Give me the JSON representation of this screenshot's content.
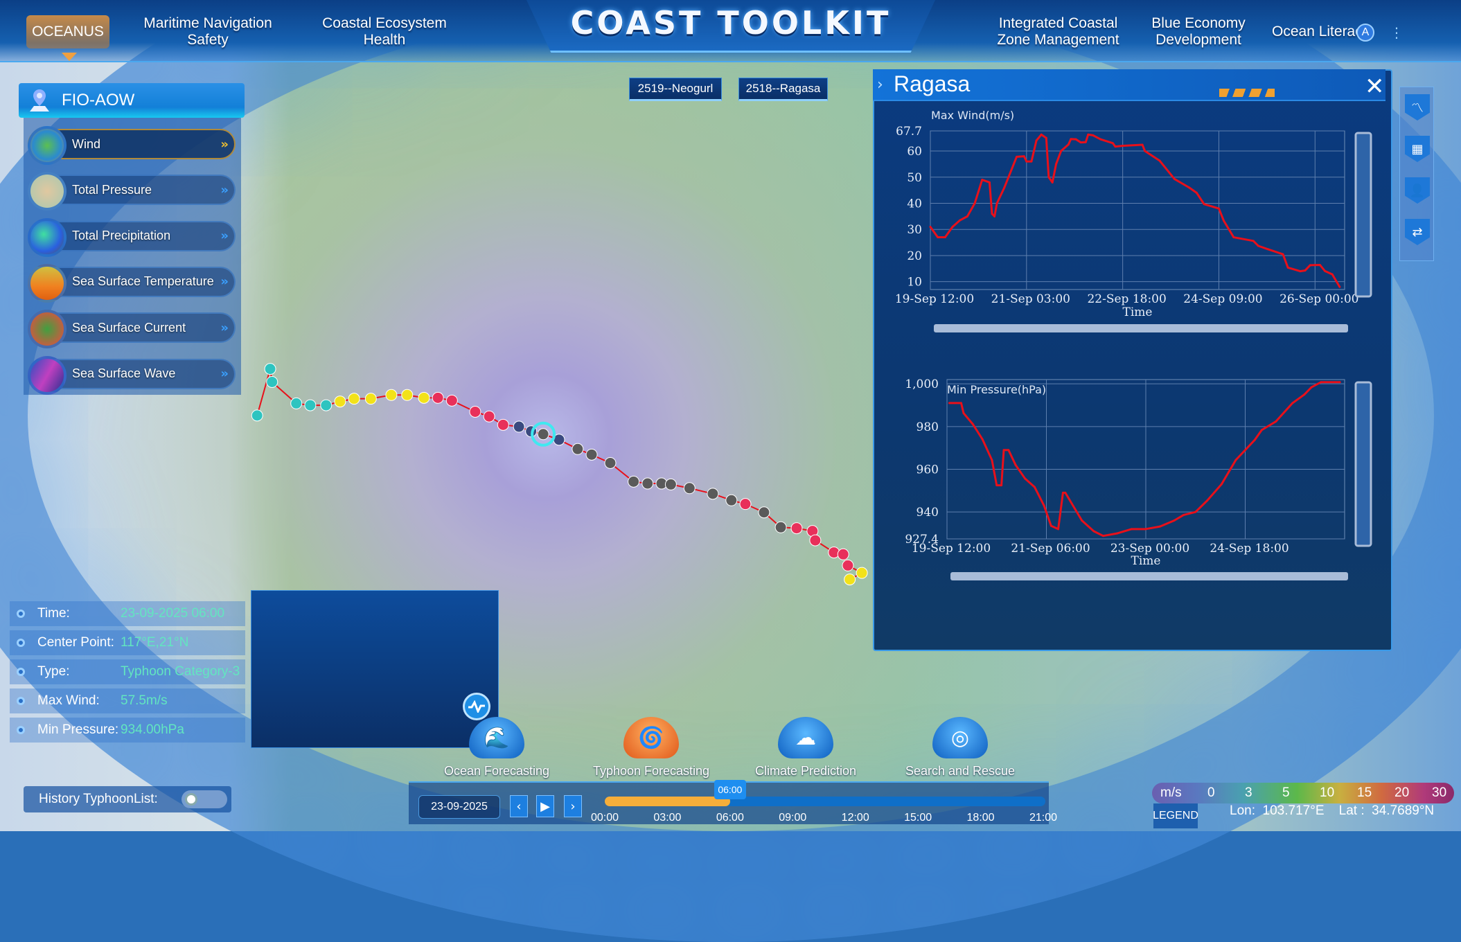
{
  "header": {
    "brand": "OCEANUS",
    "title": "COAST TOOLKIT",
    "nav_left": [
      "Maritime Navigation Safety",
      "Coastal Ecosystem Health"
    ],
    "nav_right": [
      "Integrated Coastal Zone Management",
      "Blue Economy Development",
      "Ocean Literac"
    ],
    "avatar": "A"
  },
  "typhoon_tabs": [
    "2519--Neogurl",
    "2518--Ragasa"
  ],
  "left_panel": {
    "title": "FIO-AOW",
    "layers": [
      {
        "label": "Wind",
        "active": true
      },
      {
        "label": "Total Pressure",
        "active": false
      },
      {
        "label": "Total Precipitation",
        "active": false
      },
      {
        "label": "Sea Surface Temperature",
        "active": false
      },
      {
        "label": "Sea Surface Current",
        "active": false
      },
      {
        "label": "Sea Surface Wave",
        "active": false
      }
    ]
  },
  "info": {
    "rows": [
      {
        "key": "Time:",
        "value": "23-09-2025 06:00"
      },
      {
        "key": "Center Point:",
        "value": "117°E,21°N"
      },
      {
        "key": "Type:",
        "value": "Typhoon Category-3"
      },
      {
        "key": "Max Wind:",
        "value": "57.5m/s"
      },
      {
        "key": "Min Pressure:",
        "value": "934.00hPa"
      }
    ]
  },
  "panel": {
    "title": "Ragasa"
  },
  "chart_data": [
    {
      "type": "line",
      "title": "Max Wind(m/s)",
      "xlabel": "Time",
      "ylabel": "",
      "color": "#e8101a",
      "xlim": [
        "19-Sep 12:00",
        "26-Sep 12:00"
      ],
      "ylim": [
        7,
        67.7
      ],
      "xticks": [
        "19-Sep 12:00",
        "21-Sep 03:00",
        "22-Sep 18:00",
        "24-Sep 09:00",
        "26-Sep 00:00"
      ],
      "yticks": [
        10,
        20,
        30,
        40,
        50,
        60,
        67.7
      ],
      "grid": true,
      "points": [
        [
          "19-Sep 12:00",
          31
        ],
        [
          "19-Sep 15:00",
          27
        ],
        [
          "19-Sep 18:00",
          27
        ],
        [
          "19-Sep 21:00",
          31
        ],
        [
          "20-Sep 00:00",
          33.5
        ],
        [
          "20-Sep 03:00",
          35
        ],
        [
          "20-Sep 06:00",
          40
        ],
        [
          "20-Sep 09:00",
          49
        ],
        [
          "20-Sep 12:00",
          48
        ],
        [
          "20-Sep 13:00",
          36
        ],
        [
          "20-Sep 14:00",
          35
        ],
        [
          "20-Sep 15:00",
          40
        ],
        [
          "20-Sep 18:00",
          46
        ],
        [
          "20-Sep 23:00",
          57.8
        ],
        [
          "21-Sep 02:00",
          58
        ],
        [
          "21-Sep 03:00",
          56
        ],
        [
          "21-Sep 05:00",
          56
        ],
        [
          "21-Sep 07:00",
          64
        ],
        [
          "21-Sep 09:00",
          66.3
        ],
        [
          "21-Sep 11:00",
          65
        ],
        [
          "21-Sep 12:00",
          50
        ],
        [
          "21-Sep 13:30",
          48
        ],
        [
          "21-Sep 15:00",
          55
        ],
        [
          "21-Sep 17:00",
          60
        ],
        [
          "21-Sep 20:00",
          62.5
        ],
        [
          "21-Sep 21:00",
          64.6
        ],
        [
          "21-Sep 23:00",
          64.5
        ],
        [
          "22-Sep 01:00",
          63.3
        ],
        [
          "22-Sep 03:00",
          63.4
        ],
        [
          "22-Sep 04:00",
          66.3
        ],
        [
          "22-Sep 06:00",
          66
        ],
        [
          "22-Sep 09:00",
          64.5
        ],
        [
          "22-Sep 14:00",
          63
        ],
        [
          "22-Sep 15:00",
          61.7
        ],
        [
          "22-Sep 18:00",
          62
        ],
        [
          "23-Sep 02:00",
          62.4
        ],
        [
          "23-Sep 03:00",
          60
        ],
        [
          "23-Sep 09:00",
          56.3
        ],
        [
          "23-Sep 15:00",
          49.3
        ],
        [
          "23-Sep 21:00",
          46
        ],
        [
          "24-Sep 00:00",
          44
        ],
        [
          "24-Sep 03:00",
          39.7
        ],
        [
          "24-Sep 09:00",
          38
        ],
        [
          "24-Sep 11:00",
          33.3
        ],
        [
          "24-Sep 15:00",
          27
        ],
        [
          "24-Sep 23:00",
          25.6
        ],
        [
          "25-Sep 01:00",
          23.7
        ],
        [
          "25-Sep 05:00",
          22.4
        ],
        [
          "25-Sep 11:00",
          20.5
        ],
        [
          "25-Sep 13:00",
          15.4
        ],
        [
          "25-Sep 18:00",
          14
        ],
        [
          "25-Sep 20:00",
          14.3
        ],
        [
          "25-Sep 22:00",
          16.3
        ],
        [
          "26-Sep 02:00",
          16.4
        ],
        [
          "26-Sep 04:00",
          14.1
        ],
        [
          "26-Sep 07:00",
          12.8
        ],
        [
          "26-Sep 10:00",
          8
        ]
      ]
    },
    {
      "type": "line",
      "title": "Min Pressure(hPa)",
      "xlabel": "Time",
      "ylabel": "",
      "color": "#e8101a",
      "xlim": [
        "19-Sep 12:00",
        "26-Sep 12:00"
      ],
      "ylim": [
        927.4,
        1002
      ],
      "xticks": [
        "19-Sep 12:00",
        "21-Sep 06:00",
        "23-Sep 00:00",
        "24-Sep 18:00"
      ],
      "yticks": [
        927.4,
        940,
        960,
        980,
        1000
      ],
      "ytick_labels": [
        "927.4",
        "940",
        "960",
        "980",
        "1,000"
      ],
      "grid": true,
      "points": [
        [
          "19-Sep 13:00",
          991
        ],
        [
          "19-Sep 18:00",
          991
        ],
        [
          "19-Sep 19:00",
          986.3
        ],
        [
          "19-Sep 23:00",
          981
        ],
        [
          "20-Sep 03:00",
          974
        ],
        [
          "20-Sep 07:00",
          964.3
        ],
        [
          "20-Sep 09:00",
          952.5
        ],
        [
          "20-Sep 11:00",
          952.5
        ],
        [
          "20-Sep 12:00",
          969
        ],
        [
          "20-Sep 14:00",
          969
        ],
        [
          "20-Sep 17:00",
          962
        ],
        [
          "20-Sep 21:00",
          955.6
        ],
        [
          "21-Sep 01:00",
          951.7
        ],
        [
          "21-Sep 05:00",
          943
        ],
        [
          "21-Sep 08:00",
          933.5
        ],
        [
          "21-Sep 11:00",
          932
        ],
        [
          "21-Sep 13:00",
          949
        ],
        [
          "21-Sep 14:00",
          949
        ],
        [
          "21-Sep 21:00",
          936
        ],
        [
          "22-Sep 02:00",
          931
        ],
        [
          "22-Sep 06:00",
          928.8
        ],
        [
          "22-Sep 12:00",
          930
        ],
        [
          "22-Sep 18:00",
          932
        ],
        [
          "23-Sep 00:00",
          932
        ],
        [
          "23-Sep 06:00",
          933.2
        ],
        [
          "23-Sep 12:00",
          936
        ],
        [
          "23-Sep 16:00",
          938.6
        ],
        [
          "23-Sep 21:00",
          940
        ],
        [
          "24-Sep 02:00",
          945.4
        ],
        [
          "24-Sep 08:00",
          953
        ],
        [
          "24-Sep 14:00",
          964.3
        ],
        [
          "24-Sep 18:00",
          969
        ],
        [
          "24-Sep 22:00",
          973.7
        ],
        [
          "25-Sep 01:00",
          978.4
        ],
        [
          "25-Sep 07:00",
          982.4
        ],
        [
          "25-Sep 14:00",
          991
        ],
        [
          "25-Sep 19:00",
          995
        ],
        [
          "25-Sep 22:00",
          998.4
        ],
        [
          "26-Sep 02:00",
          1000.8
        ],
        [
          "26-Sep 10:00",
          1000.8
        ]
      ]
    }
  ],
  "right_toolbar": [
    "chart-line-icon",
    "grid-icon",
    "worker-icon",
    "swap-icon"
  ],
  "features": [
    "Ocean Forecasting",
    "Typhoon Forecasting",
    "Climate Prediction",
    "Search and Rescue"
  ],
  "timeline": {
    "date": "23-09-2025",
    "current": "06:00",
    "progress_hours": 6,
    "range_hours": 21,
    "ticks": [
      "00:00",
      "03:00",
      "06:00",
      "09:00",
      "12:00",
      "15:00",
      "18:00",
      "21:00"
    ]
  },
  "history": {
    "label": "History TyphoonList:",
    "enabled": false
  },
  "legend": {
    "unit": "m/s",
    "stops": [
      "0",
      "3",
      "5",
      "10",
      "15",
      "20",
      "30"
    ],
    "button": "LEGEND",
    "lon": "Lon:  103.717°E",
    "lat": "Lat :  34.7689°N"
  },
  "colors": {
    "accent": "#1e8ef0",
    "track_line": "#e8101a",
    "progress": "#f6ae3a",
    "info_value": "#62e6c0"
  }
}
